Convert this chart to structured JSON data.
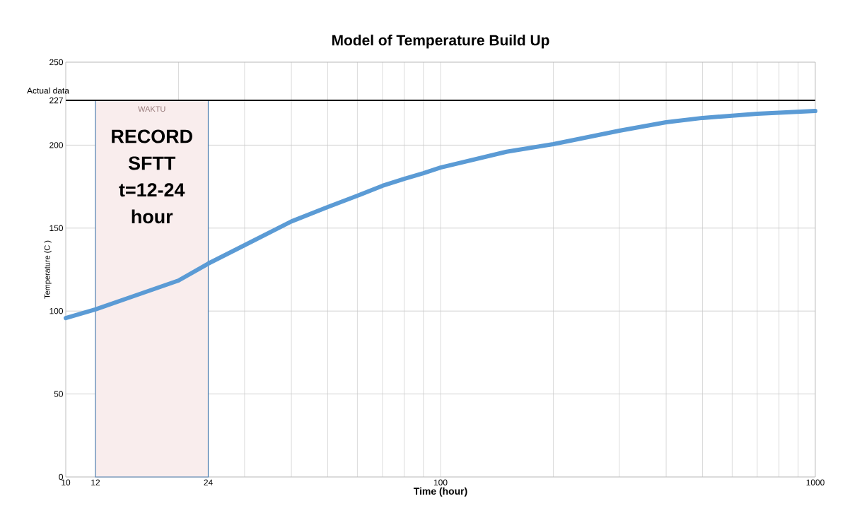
{
  "chart_data": {
    "type": "line",
    "title": "Model of Temperature Build Up",
    "xlabel": "Time (hour)",
    "ylabel": "Temperature (C )",
    "log": "x",
    "grid": true,
    "xlim": [
      10,
      1000
    ],
    "ylim": [
      0,
      250
    ],
    "xticks": [
      10,
      12,
      24,
      100,
      1000
    ],
    "yticks": [
      0,
      50,
      100,
      150,
      200,
      227,
      250
    ],
    "x": [
      10,
      12,
      15,
      20,
      24,
      30,
      40,
      50,
      60,
      70,
      80,
      90,
      100,
      150,
      200,
      300,
      400,
      500,
      700,
      1000
    ],
    "series": [
      {
        "color": "#5b9bd5",
        "values": [
          95.8,
          101,
          108.6,
          118.4,
          128.6,
          139.7,
          154,
          162.7,
          169.5,
          175.5,
          179.7,
          183.1,
          186.5,
          196,
          200.6,
          208.7,
          213.8,
          216.4,
          218.9,
          220.6
        ]
      }
    ],
    "ref_lines": [
      {
        "axis": "y",
        "value": 227,
        "label": "Actual data",
        "color": "#000000"
      }
    ],
    "bands": [
      {
        "axis": "x",
        "from": 12,
        "to": 24,
        "label": "RECORD SFTT t=12-24 hour",
        "color": "#f9eded"
      }
    ],
    "annotations": [
      "WAKTU"
    ]
  }
}
